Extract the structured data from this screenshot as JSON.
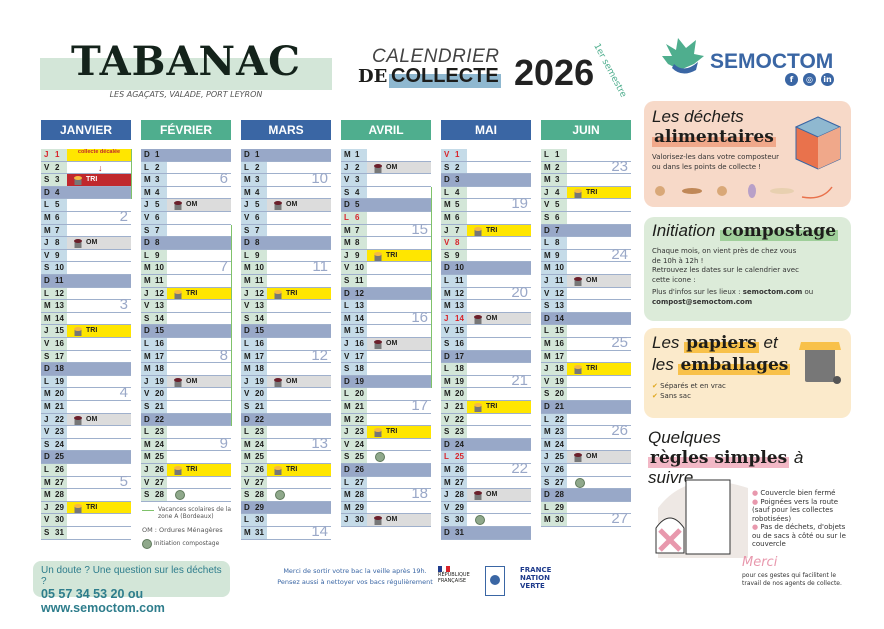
{
  "header": {
    "town": "TABANAC",
    "subtitle": "LES AGAÇATS, VALADE, PORT LEYRON",
    "cal_line1": "CALENDRIER",
    "cal_de": "DE",
    "cal_collecte": "COLLECTE",
    "year": "2026",
    "semester": "1er semestre",
    "brand": "SEMOCTOM",
    "social": [
      "f",
      "◎",
      "in"
    ]
  },
  "colors": {
    "month_blue": "#3a66a4",
    "month_green": "#4fae8e",
    "sunday": "#98a8c8",
    "week_odd": "#d3e6d8",
    "week_even": "#c5dbe8",
    "om": "#dcdcdc",
    "tri": "#ffe600",
    "decalee": "#c0282d",
    "holiday": "#d8232a",
    "vacation_line": "#7fc26a"
  },
  "weekday_letters": [
    "L",
    "M",
    "M",
    "J",
    "V",
    "S",
    "D"
  ],
  "months": [
    {
      "name": "JANVIER",
      "color": "blue",
      "first_dow": 3,
      "days": 31,
      "first_week": 1,
      "red": [
        1
      ],
      "collections": {
        "3": "TRI",
        "8": "OM",
        "15": "TRI",
        "22": "OM",
        "29": "TRI"
      },
      "shifted": [
        3
      ],
      "weeks": {
        "6": "2",
        "13": "3",
        "20": "4",
        "27": "5"
      },
      "vacation": [
        [
          1,
          4
        ]
      ],
      "compost": []
    },
    {
      "name": "FÉVRIER",
      "color": "green",
      "first_dow": 6,
      "days": 28,
      "first_week": 5,
      "red": [],
      "collections": {
        "5": "OM",
        "12": "TRI",
        "19": "OM",
        "26": "TRI"
      },
      "shifted": [],
      "weeks": {
        "3": "6",
        "10": "7",
        "17": "8",
        "24": "9"
      },
      "vacation": [
        [
          7,
          22
        ]
      ],
      "compost": [
        28
      ]
    },
    {
      "name": "MARS",
      "color": "blue",
      "first_dow": 6,
      "days": 31,
      "first_week": 9,
      "red": [],
      "collections": {
        "5": "OM",
        "12": "TRI",
        "19": "OM",
        "26": "TRI"
      },
      "shifted": [],
      "weeks": {
        "3": "10",
        "10": "11",
        "17": "12",
        "24": "13",
        "31": "14"
      },
      "vacation": [],
      "compost": [
        28
      ]
    },
    {
      "name": "AVRIL",
      "color": "green",
      "first_dow": 2,
      "days": 30,
      "first_week": 14,
      "red": [
        6
      ],
      "collections": {
        "2": "OM",
        "9": "TRI",
        "16": "OM",
        "23": "TRI",
        "30": "OM"
      },
      "shifted": [],
      "weeks": {
        "7": "15",
        "14": "16",
        "21": "17",
        "28": "18"
      },
      "vacation": [
        [
          4,
          19
        ]
      ],
      "compost": [
        25
      ]
    },
    {
      "name": "MAI",
      "color": "blue",
      "first_dow": 4,
      "days": 31,
      "first_week": 18,
      "red": [
        1,
        8,
        14,
        25
      ],
      "collections": {
        "7": "TRI",
        "14": "OM",
        "21": "TRI",
        "28": "OM"
      },
      "shifted": [],
      "weeks": {
        "5": "19",
        "12": "20",
        "19": "21",
        "26": "22"
      },
      "vacation": [],
      "compost": [
        30
      ]
    },
    {
      "name": "JUIN",
      "color": "green",
      "first_dow": 0,
      "days": 30,
      "first_week": 23,
      "red": [],
      "collections": {
        "4": "TRI",
        "11": "OM",
        "18": "TRI",
        "25": "OM"
      },
      "shifted": [],
      "weeks": {
        "2": "23",
        "9": "24",
        "16": "25",
        "23": "26",
        "30": "27"
      },
      "vacation": [],
      "compost": [
        27
      ]
    }
  ],
  "shifted_note": "collecte décalée",
  "legend": {
    "vacation": "Vacances scolaires de la zone A (Bordeaux)",
    "om": "OM : Ordures Ménagères",
    "compost": "Initiation compostage"
  },
  "panels": {
    "food": {
      "title1": "Les déchets",
      "title2": "alimentaires",
      "text": "Valorisez-les dans votre composteur ou dans les points de collecte !"
    },
    "compost": {
      "title1": "Initiation",
      "title2": "compostage",
      "text1": "Chaque mois, on vient près de chez vous de 10h à 12h !",
      "text2": "Retrouvez les dates sur le calendrier avec cette icone :",
      "text3": "Plus d'infos sur les lieux :",
      "site": "semoctom.com",
      "or": "ou",
      "email": "compost@semoctom.com"
    },
    "paper": {
      "title1": "Les",
      "title2": "papiers",
      "title3": "et",
      "title4": "les",
      "title5": "emballages",
      "check1": "Séparés et en vrac",
      "check2": "Sans sac"
    },
    "rules": {
      "title1": "Quelques",
      "title2": "règles simples",
      "title3": "à suivre",
      "rule1": "Couvercle bien fermé",
      "rule2": "Poignées vers la route (sauf pour les collectes robotisées)",
      "rule3": "Pas de déchets, d'objets ou de sacs à côté ou sur le couvercle",
      "merci": "Merci",
      "merci_text": "pour ces gestes qui facilitent le travail de nos agents de collecte."
    }
  },
  "footer": {
    "question": "Un doute ? Une question sur les déchets ?",
    "contact": "05 57 34 53 20 ou www.semoctom.com",
    "note1": "Merci de sortir votre bac la veille après 19h.",
    "note2": "Pensez aussi à nettoyer vos bacs régulièrement",
    "logo1": "RÉPUBLIQUE FRANÇAISE",
    "logo3": "FRANCE NATION VERTE"
  }
}
